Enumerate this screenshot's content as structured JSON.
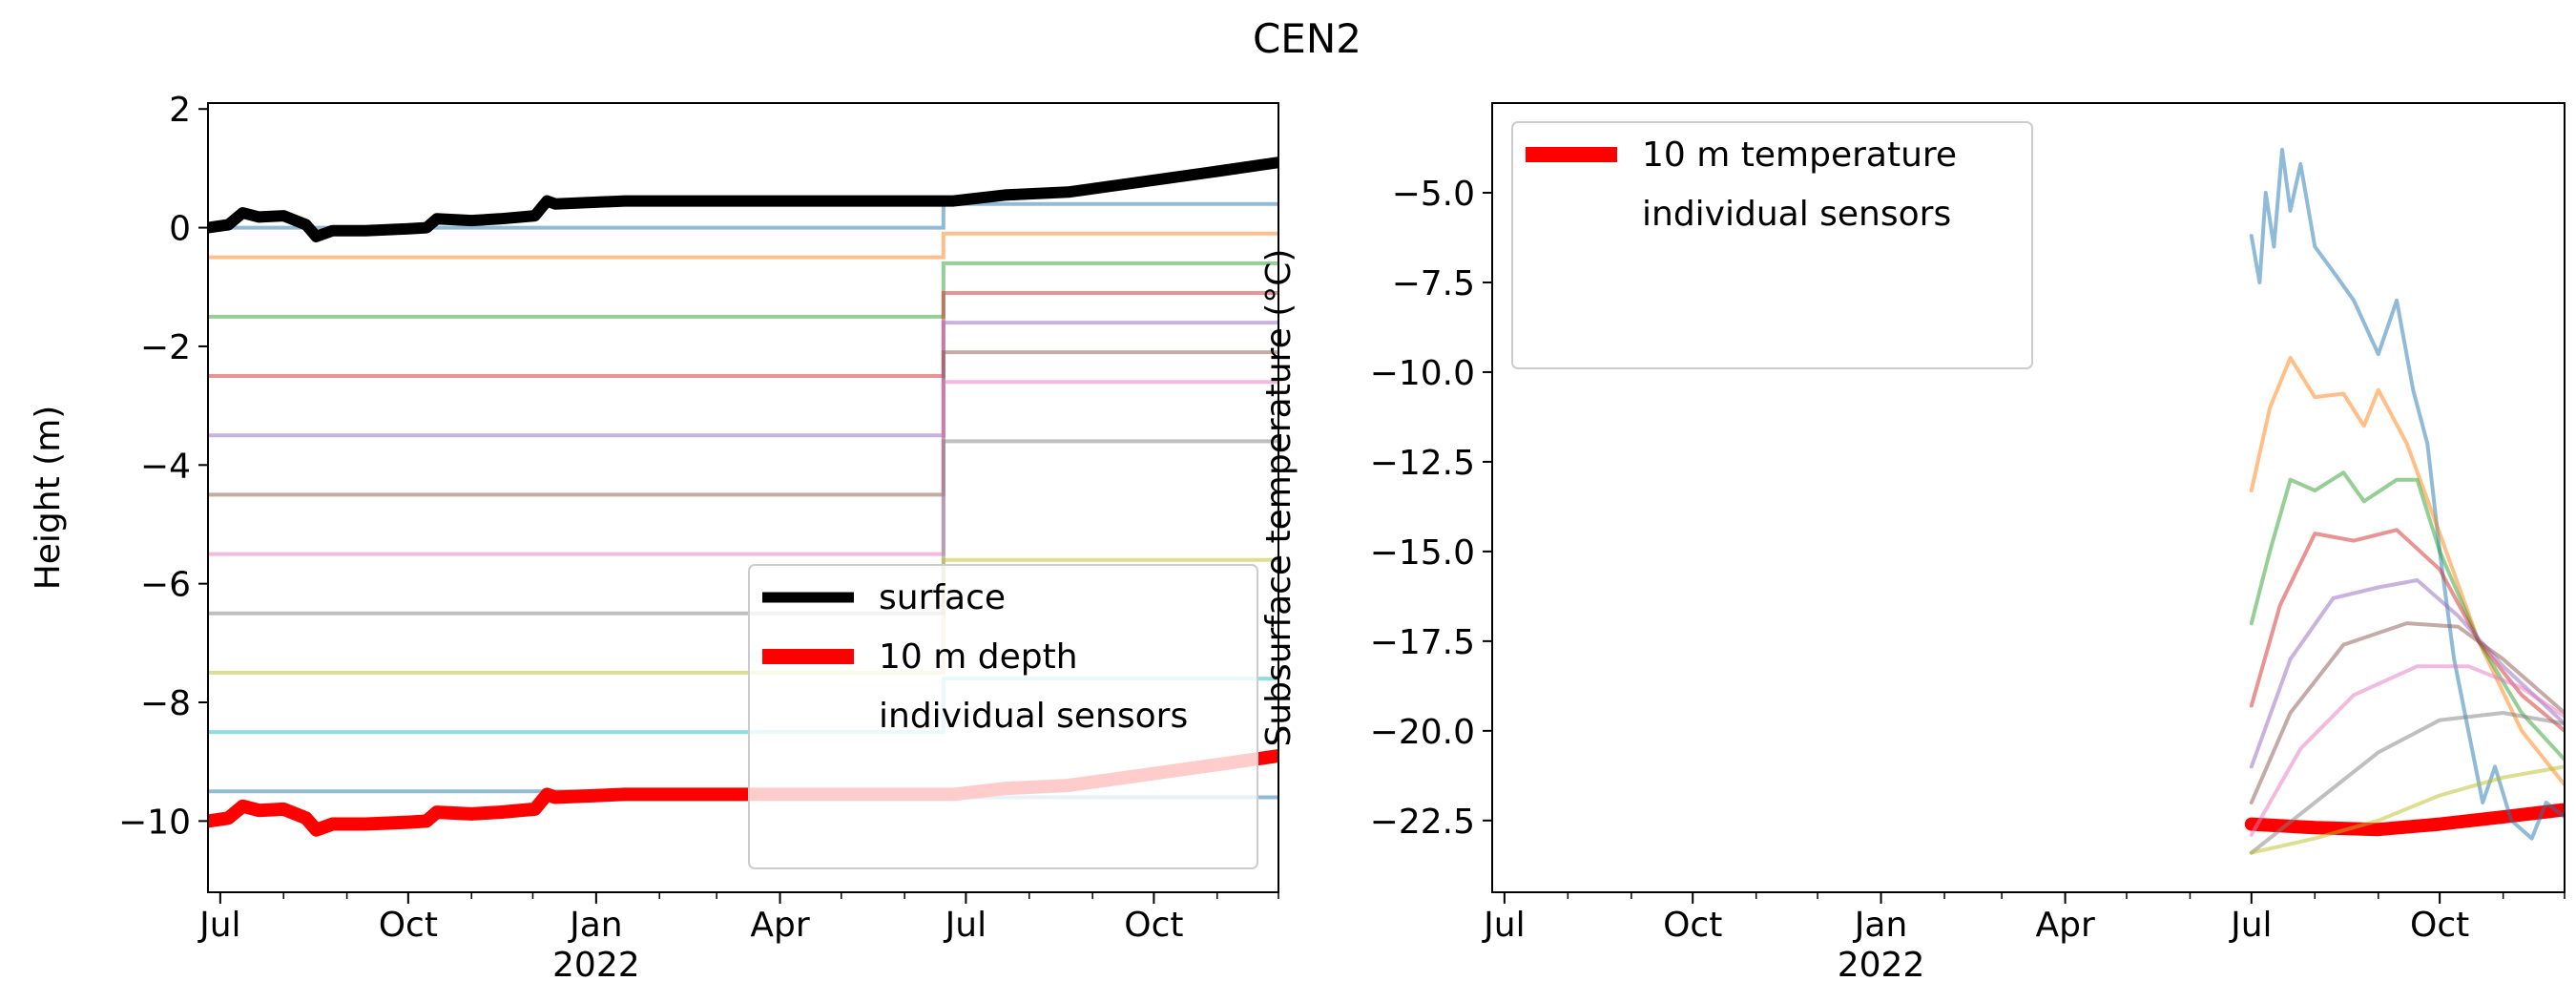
{
  "figure": {
    "title": "CEN2"
  },
  "chart_data": [
    {
      "type": "line",
      "panel": "left",
      "xlabel": "",
      "ylabel": "Height (m)",
      "x_axis": {
        "type": "date",
        "range": [
          "2021-06-25",
          "2022-12-01"
        ],
        "ticks": [
          {
            "date": "2021-07-01",
            "label": "Jul"
          },
          {
            "date": "2021-10-01",
            "label": "Oct"
          },
          {
            "date": "2022-01-01",
            "label": "Jan",
            "sublabel": "2022"
          },
          {
            "date": "2022-04-01",
            "label": "Apr"
          },
          {
            "date": "2022-07-01",
            "label": "Jul"
          },
          {
            "date": "2022-10-01",
            "label": "Oct"
          }
        ]
      },
      "ylim": [
        -11.2,
        2.1
      ],
      "yticks": [
        2,
        0,
        -2,
        -4,
        -6,
        -8,
        -10
      ],
      "ytick_labels": [
        "2",
        "0",
        "−2",
        "−4",
        "−6",
        "−8",
        "−10"
      ],
      "legend": {
        "placement": "lower-right",
        "entries": [
          {
            "label": "surface",
            "color": "#000000"
          },
          {
            "label": "10 m depth",
            "color": "#ff0000"
          },
          {
            "label": "individual sensors",
            "color": ""
          }
        ]
      },
      "series": [
        {
          "name": "surface",
          "color": "#000000",
          "points": [
            [
              "2021-06-25",
              0.0
            ],
            [
              "2021-07-05",
              0.05
            ],
            [
              "2021-07-12",
              0.25
            ],
            [
              "2021-07-20",
              0.18
            ],
            [
              "2021-08-01",
              0.2
            ],
            [
              "2021-08-12",
              0.05
            ],
            [
              "2021-08-17",
              -0.15
            ],
            [
              "2021-08-25",
              -0.05
            ],
            [
              "2021-09-10",
              -0.05
            ],
            [
              "2021-10-01",
              -0.02
            ],
            [
              "2021-10-10",
              0.0
            ],
            [
              "2021-10-15",
              0.15
            ],
            [
              "2021-11-01",
              0.12
            ],
            [
              "2021-11-15",
              0.15
            ],
            [
              "2021-12-02",
              0.2
            ],
            [
              "2021-12-08",
              0.45
            ],
            [
              "2021-12-12",
              0.4
            ],
            [
              "2022-01-15",
              0.45
            ],
            [
              "2022-03-01",
              0.45
            ],
            [
              "2022-06-25",
              0.45
            ],
            [
              "2022-07-20",
              0.55
            ],
            [
              "2022-08-20",
              0.6
            ],
            [
              "2022-09-10",
              0.7
            ],
            [
              "2022-10-01",
              0.8
            ],
            [
              "2022-11-01",
              0.95
            ],
            [
              "2022-12-01",
              1.1
            ]
          ]
        },
        {
          "name": "10 m depth",
          "color": "#ff0000",
          "points": [
            [
              "2021-06-25",
              -10.0
            ],
            [
              "2021-07-05",
              -9.95
            ],
            [
              "2021-07-12",
              -9.75
            ],
            [
              "2021-07-20",
              -9.82
            ],
            [
              "2021-08-01",
              -9.8
            ],
            [
              "2021-08-12",
              -9.95
            ],
            [
              "2021-08-17",
              -10.15
            ],
            [
              "2021-08-25",
              -10.05
            ],
            [
              "2021-09-10",
              -10.05
            ],
            [
              "2021-10-01",
              -10.02
            ],
            [
              "2021-10-10",
              -10.0
            ],
            [
              "2021-10-15",
              -9.85
            ],
            [
              "2021-11-01",
              -9.88
            ],
            [
              "2021-11-15",
              -9.85
            ],
            [
              "2021-12-02",
              -9.8
            ],
            [
              "2021-12-08",
              -9.55
            ],
            [
              "2021-12-12",
              -9.6
            ],
            [
              "2022-01-15",
              -9.55
            ],
            [
              "2022-03-01",
              -9.55
            ],
            [
              "2022-06-25",
              -9.55
            ],
            [
              "2022-07-20",
              -9.45
            ],
            [
              "2022-08-20",
              -9.4
            ],
            [
              "2022-09-10",
              -9.3
            ],
            [
              "2022-10-01",
              -9.2
            ],
            [
              "2022-11-01",
              -9.05
            ],
            [
              "2022-12-01",
              -8.9
            ]
          ]
        }
      ],
      "sensors": [
        {
          "color": "#1f77b4",
          "before": 0.0,
          "after": 0.4
        },
        {
          "color": "#ff7f0e",
          "before": -0.5,
          "after": -0.1
        },
        {
          "color": "#2ca02c",
          "before": -1.5,
          "after": -0.6
        },
        {
          "color": "#d62728",
          "before": -2.5,
          "after": -1.1
        },
        {
          "color": "#9467bd",
          "before": -3.5,
          "after": -1.6
        },
        {
          "color": "#8c564b",
          "before": -4.5,
          "after": -2.1
        },
        {
          "color": "#e377c2",
          "before": -5.5,
          "after": -2.6
        },
        {
          "color": "#7f7f7f",
          "before": -6.5,
          "after": -3.6
        },
        {
          "color": "#bcbd22",
          "before": -7.5,
          "after": -5.6
        },
        {
          "color": "#17becf",
          "before": -8.5,
          "after": -7.6
        },
        {
          "color": "#1f77b4",
          "before": -9.5,
          "after": -9.6
        }
      ],
      "sensor_step_date": "2022-06-20"
    },
    {
      "type": "line",
      "panel": "right",
      "xlabel": "",
      "ylabel": "Subsurface temperature (°C)",
      "x_axis": {
        "type": "date",
        "range": [
          "2021-06-25",
          "2022-12-01"
        ],
        "ticks": [
          {
            "date": "2021-07-01",
            "label": "Jul"
          },
          {
            "date": "2021-10-01",
            "label": "Oct"
          },
          {
            "date": "2022-01-01",
            "label": "Jan",
            "sublabel": "2022"
          },
          {
            "date": "2022-04-01",
            "label": "Apr"
          },
          {
            "date": "2022-07-01",
            "label": "Jul"
          },
          {
            "date": "2022-10-01",
            "label": "Oct"
          }
        ]
      },
      "ylim": [
        -24.5,
        -2.5
      ],
      "yticks": [
        -5.0,
        -7.5,
        -10.0,
        -12.5,
        -15.0,
        -17.5,
        -20.0,
        -22.5
      ],
      "ytick_labels": [
        "−5.0",
        "−7.5",
        "−10.0",
        "−12.5",
        "−15.0",
        "−17.5",
        "−20.0",
        "−22.5"
      ],
      "legend": {
        "placement": "top-left",
        "entries": [
          {
            "label": "10 m temperature",
            "color": "#ff0000"
          },
          {
            "label": "individual sensors",
            "color": ""
          }
        ]
      },
      "series": [
        {
          "name": "10 m temperature",
          "color": "#ff0000",
          "points": [
            [
              "2022-07-01",
              -22.6
            ],
            [
              "2022-08-01",
              -22.7
            ],
            [
              "2022-09-01",
              -22.75
            ],
            [
              "2022-10-01",
              -22.6
            ],
            [
              "2022-11-01",
              -22.4
            ],
            [
              "2022-12-01",
              -22.2
            ]
          ]
        },
        {
          "color": "#1f77b4",
          "points": [
            [
              "2022-07-01",
              -6.2
            ],
            [
              "2022-07-05",
              -7.5
            ],
            [
              "2022-07-08",
              -5.0
            ],
            [
              "2022-07-12",
              -6.5
            ],
            [
              "2022-07-16",
              -3.8
            ],
            [
              "2022-07-20",
              -5.5
            ],
            [
              "2022-07-25",
              -4.2
            ],
            [
              "2022-08-01",
              -6.5
            ],
            [
              "2022-08-10",
              -7.2
            ],
            [
              "2022-08-20",
              -8.0
            ],
            [
              "2022-09-01",
              -9.5
            ],
            [
              "2022-09-10",
              -8.0
            ],
            [
              "2022-09-18",
              -10.5
            ],
            [
              "2022-09-25",
              -12.0
            ],
            [
              "2022-10-01",
              -15.0
            ],
            [
              "2022-10-08",
              -18.0
            ],
            [
              "2022-10-15",
              -20.0
            ],
            [
              "2022-10-22",
              -22.0
            ],
            [
              "2022-10-28",
              -21.0
            ],
            [
              "2022-11-05",
              -22.5
            ],
            [
              "2022-11-15",
              -23.0
            ],
            [
              "2022-11-22",
              -22.0
            ],
            [
              "2022-12-01",
              -22.4
            ]
          ]
        },
        {
          "color": "#ff7f0e",
          "points": [
            [
              "2022-07-01",
              -13.3
            ],
            [
              "2022-07-10",
              -11.0
            ],
            [
              "2022-07-20",
              -9.6
            ],
            [
              "2022-08-01",
              -10.7
            ],
            [
              "2022-08-15",
              -10.6
            ],
            [
              "2022-08-25",
              -11.5
            ],
            [
              "2022-09-01",
              -10.5
            ],
            [
              "2022-09-15",
              -12.0
            ],
            [
              "2022-10-01",
              -14.5
            ],
            [
              "2022-10-20",
              -17.5
            ],
            [
              "2022-11-10",
              -20.0
            ],
            [
              "2022-12-01",
              -21.5
            ]
          ]
        },
        {
          "color": "#2ca02c",
          "points": [
            [
              "2022-07-01",
              -17.0
            ],
            [
              "2022-07-10",
              -15.0
            ],
            [
              "2022-07-20",
              -13.0
            ],
            [
              "2022-08-01",
              -13.3
            ],
            [
              "2022-08-15",
              -12.8
            ],
            [
              "2022-08-25",
              -13.6
            ],
            [
              "2022-09-10",
              -13.0
            ],
            [
              "2022-09-20",
              -13.0
            ],
            [
              "2022-10-01",
              -15.0
            ],
            [
              "2022-10-20",
              -17.5
            ],
            [
              "2022-11-10",
              -19.5
            ],
            [
              "2022-12-01",
              -20.8
            ]
          ]
        },
        {
          "color": "#d62728",
          "points": [
            [
              "2022-07-01",
              -19.3
            ],
            [
              "2022-07-15",
              -16.5
            ],
            [
              "2022-08-01",
              -14.5
            ],
            [
              "2022-08-20",
              -14.7
            ],
            [
              "2022-09-10",
              -14.4
            ],
            [
              "2022-10-01",
              -15.5
            ],
            [
              "2022-10-20",
              -17.5
            ],
            [
              "2022-11-10",
              -19.0
            ],
            [
              "2022-12-01",
              -20.0
            ]
          ]
        },
        {
          "color": "#9467bd",
          "points": [
            [
              "2022-07-01",
              -21.0
            ],
            [
              "2022-07-20",
              -18.0
            ],
            [
              "2022-08-10",
              -16.3
            ],
            [
              "2022-09-01",
              -16.0
            ],
            [
              "2022-09-20",
              -15.8
            ],
            [
              "2022-10-10",
              -16.8
            ],
            [
              "2022-11-01",
              -18.2
            ],
            [
              "2022-12-01",
              -19.8
            ]
          ]
        },
        {
          "color": "#8c564b",
          "points": [
            [
              "2022-07-01",
              -22.0
            ],
            [
              "2022-07-20",
              -19.5
            ],
            [
              "2022-08-15",
              -17.6
            ],
            [
              "2022-09-15",
              -17.0
            ],
            [
              "2022-10-10",
              -17.1
            ],
            [
              "2022-11-01",
              -18.0
            ],
            [
              "2022-12-01",
              -19.5
            ]
          ]
        },
        {
          "color": "#e377c2",
          "points": [
            [
              "2022-07-01",
              -22.9
            ],
            [
              "2022-07-25",
              -20.5
            ],
            [
              "2022-08-20",
              -19.0
            ],
            [
              "2022-09-20",
              -18.2
            ],
            [
              "2022-10-15",
              -18.2
            ],
            [
              "2022-11-10",
              -18.8
            ],
            [
              "2022-12-01",
              -19.6
            ]
          ]
        },
        {
          "color": "#7f7f7f",
          "points": [
            [
              "2022-07-01",
              -23.4
            ],
            [
              "2022-08-01",
              -22.0
            ],
            [
              "2022-09-01",
              -20.6
            ],
            [
              "2022-10-01",
              -19.7
            ],
            [
              "2022-11-01",
              -19.5
            ],
            [
              "2022-12-01",
              -19.8
            ]
          ]
        },
        {
          "color": "#bcbd22",
          "points": [
            [
              "2022-07-01",
              -23.4
            ],
            [
              "2022-08-01",
              -23.0
            ],
            [
              "2022-09-01",
              -22.5
            ],
            [
              "2022-10-01",
              -21.8
            ],
            [
              "2022-11-01",
              -21.3
            ],
            [
              "2022-12-01",
              -21.0
            ]
          ]
        }
      ]
    }
  ]
}
